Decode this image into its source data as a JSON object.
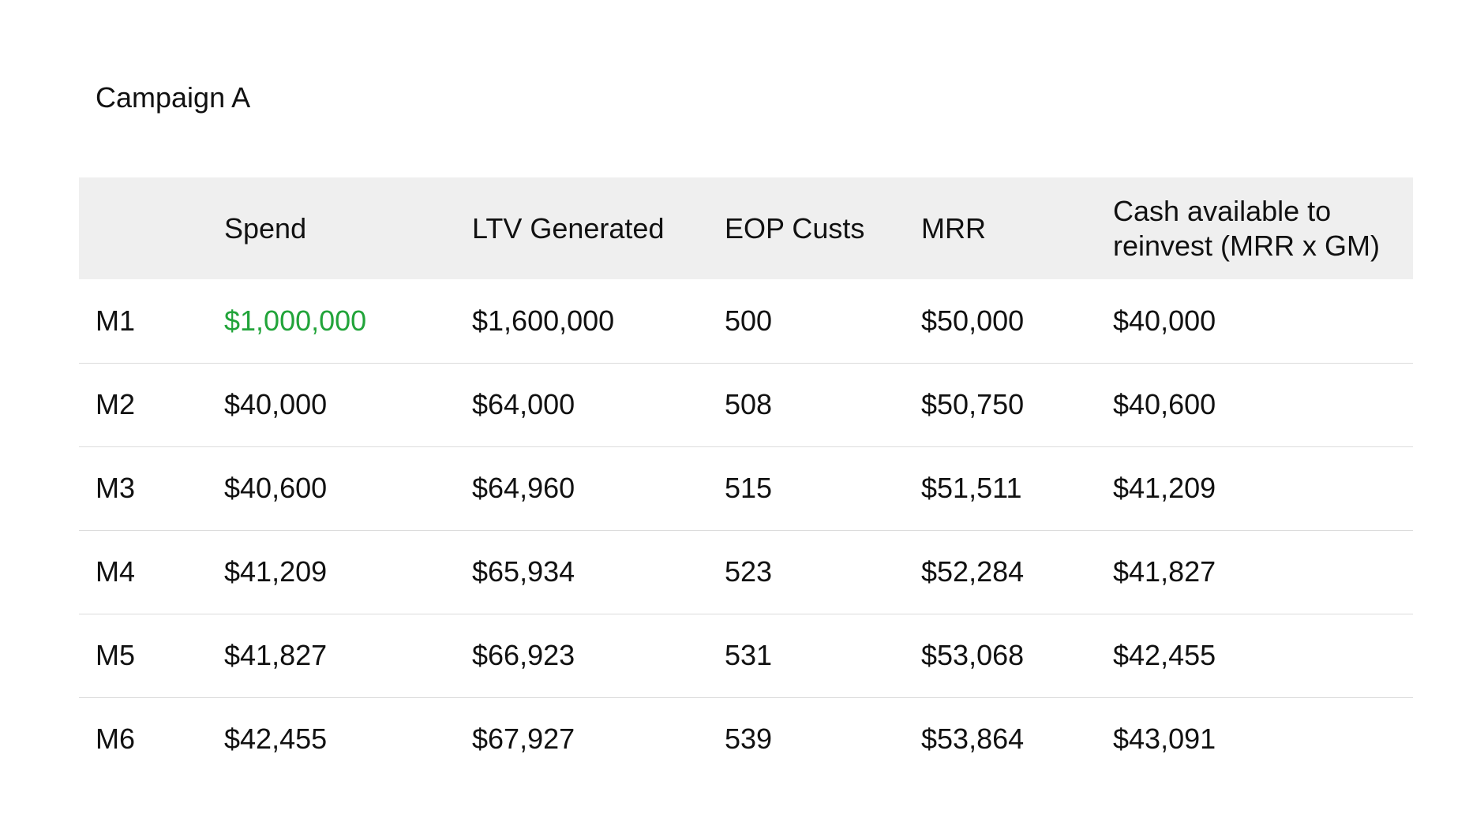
{
  "title": "Campaign A",
  "colors": {
    "highlight": "#22a43a",
    "header_bg": "#efefef",
    "row_divider": "#dcdcdc"
  },
  "chart_data": {
    "type": "table",
    "title": "Campaign A",
    "columns": [
      "",
      "Spend",
      "LTV Generated",
      "EOP Custs",
      "MRR",
      "Cash available to reinvest (MRR x GM)"
    ],
    "rows": [
      [
        "M1",
        "$1,000,000",
        "$1,600,000",
        "500",
        "$50,000",
        "$40,000"
      ],
      [
        "M2",
        "$40,000",
        "$64,000",
        "508",
        "$50,750",
        "$40,600"
      ],
      [
        "M3",
        "$40,600",
        "$64,960",
        "515",
        "$51,511",
        "$41,209"
      ],
      [
        "M4",
        "$41,209",
        "$65,934",
        "523",
        "$52,284",
        "$41,827"
      ],
      [
        "M5",
        "$41,827",
        "$66,923",
        "531",
        "$53,068",
        "$42,455"
      ],
      [
        "M6",
        "$42,455",
        "$67,927",
        "539",
        "$53,864",
        "$43,091"
      ]
    ],
    "highlighted_cells": [
      {
        "row": 0,
        "col": 1,
        "color": "#22a43a"
      }
    ]
  }
}
